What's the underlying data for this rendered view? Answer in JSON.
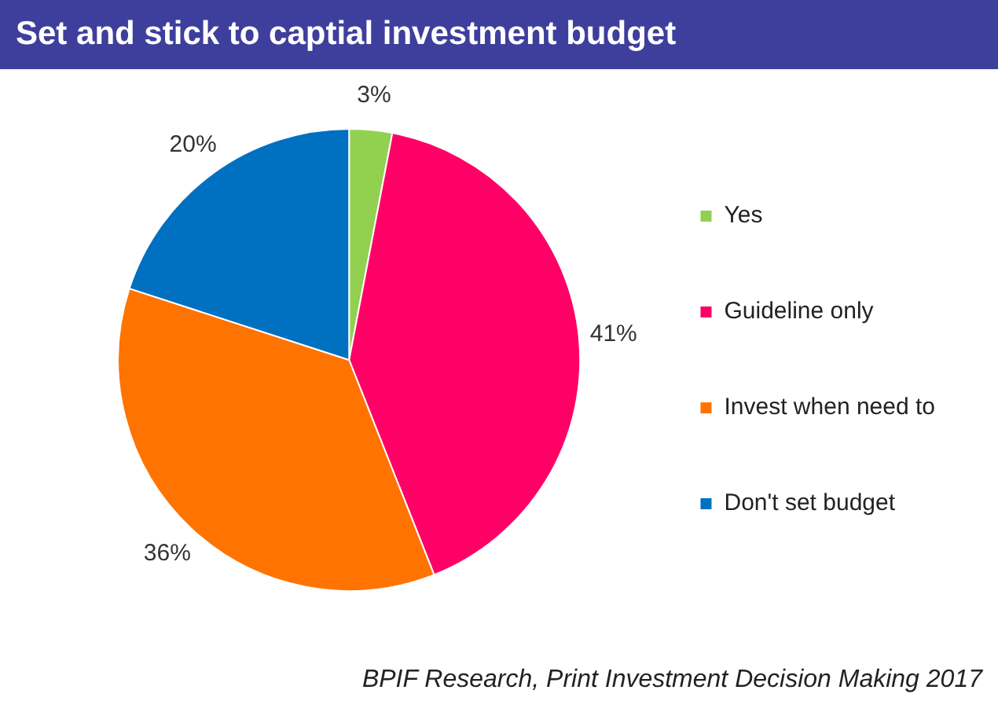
{
  "chart_data": {
    "type": "pie",
    "title": "Set and stick to captial investment budget",
    "categories": [
      "Yes",
      "Guideline only",
      "Invest when need to",
      "Don't set budget"
    ],
    "values": [
      3,
      41,
      36,
      20
    ],
    "colors": [
      "#92d050",
      "#ff0066",
      "#ff7300",
      "#0070c0"
    ],
    "value_labels": [
      "3%",
      "41%",
      "36%",
      "20%"
    ],
    "legend": "right",
    "annotations": [
      "BPIF Research, Print Investment Decision Making 2017"
    ]
  }
}
